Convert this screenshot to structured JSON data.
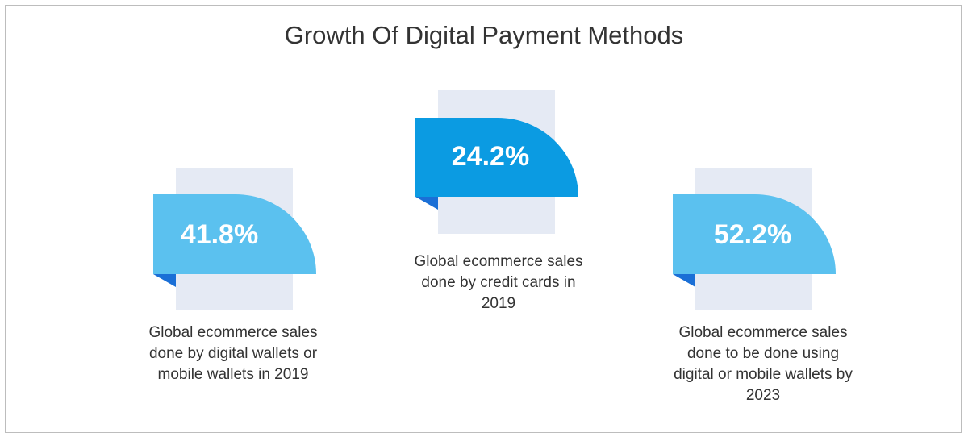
{
  "header": {
    "title": "Growth Of Digital Payment Methods"
  },
  "cards": [
    {
      "value": "41.8%",
      "description": "Global ecommerce sales done by digital wallets or mobile wallets in 2019"
    },
    {
      "value": "24.2%",
      "description": "Global ecommerce sales done by credit cards in 2019"
    },
    {
      "value": "52.2%",
      "description": "Global ecommerce sales done to be done using digital or mobile wallets by 2023"
    }
  ]
}
